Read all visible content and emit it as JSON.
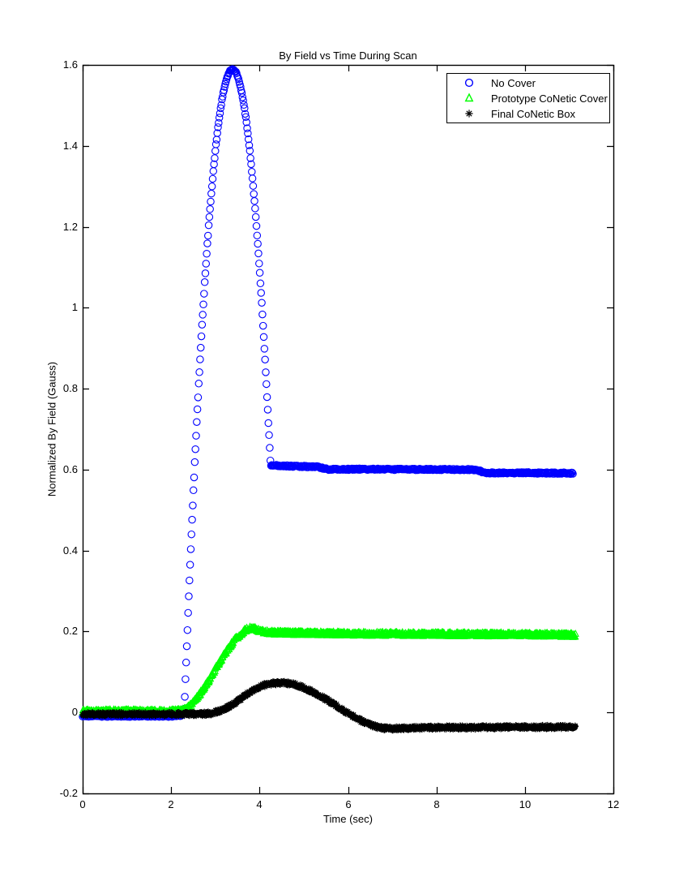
{
  "chart_data": {
    "type": "scatter",
    "title": "By Field vs Time During Scan",
    "xlabel": "Time (sec)",
    "ylabel": "Normalized By Field (Gauss)",
    "xlim": [
      0,
      12
    ],
    "ylim": [
      -0.2,
      1.6
    ],
    "grid": false,
    "legend_position": "upper-right",
    "background_color": "#FFFFFF",
    "axis_color": "#000000",
    "xtick_values": [
      0,
      2,
      4,
      6,
      8,
      10,
      12
    ],
    "xtick_labels": [
      "0",
      "2",
      "4",
      "6",
      "8",
      "10",
      "12"
    ],
    "ytick_values": [
      1.6,
      1.4,
      1.2,
      1,
      0.8,
      0.6,
      0.4,
      0.2,
      0,
      -0.2
    ],
    "ytick_labels": [
      "1.6",
      "1.4",
      "1.2",
      "1",
      "0.8",
      "0.6",
      "0.4",
      "0.2",
      "0",
      "-0.2"
    ],
    "series": [
      {
        "name": "No Cover",
        "marker": "circle",
        "color": "#0000FF",
        "sample_interval": 0.015,
        "jitter": 0.002,
        "points": [
          [
            0,
            -0.009
          ],
          [
            1.0,
            -0.009
          ],
          [
            2.0,
            -0.009
          ],
          [
            2.24,
            -0.007
          ],
          [
            2.3,
            0.01
          ],
          [
            2.35,
            0.151
          ],
          [
            2.4,
            0.286
          ],
          [
            2.45,
            0.415
          ],
          [
            2.5,
            0.536
          ],
          [
            2.55,
            0.652
          ],
          [
            2.6,
            0.76
          ],
          [
            2.65,
            0.862
          ],
          [
            2.7,
            0.957
          ],
          [
            2.75,
            1.045
          ],
          [
            2.8,
            1.127
          ],
          [
            2.85,
            1.202
          ],
          [
            2.9,
            1.271
          ],
          [
            2.95,
            1.332
          ],
          [
            3.0,
            1.388
          ],
          [
            3.05,
            1.436
          ],
          [
            3.1,
            1.478
          ],
          [
            3.15,
            1.513
          ],
          [
            3.2,
            1.542
          ],
          [
            3.25,
            1.564
          ],
          [
            3.3,
            1.579
          ],
          [
            3.35,
            1.588
          ],
          [
            3.39,
            1.59
          ],
          [
            3.45,
            1.585
          ],
          [
            3.5,
            1.574
          ],
          [
            3.55,
            1.556
          ],
          [
            3.6,
            1.531
          ],
          [
            3.65,
            1.5
          ],
          [
            3.7,
            1.462
          ],
          [
            3.75,
            1.418
          ],
          [
            3.8,
            1.366
          ],
          [
            3.85,
            1.309
          ],
          [
            3.9,
            1.244
          ],
          [
            3.95,
            1.173
          ],
          [
            4.0,
            1.095
          ],
          [
            4.05,
            1.011
          ],
          [
            4.1,
            0.92
          ],
          [
            4.15,
            0.822
          ],
          [
            4.2,
            0.717
          ],
          [
            4.25,
            0.611
          ],
          [
            4.6,
            0.609
          ],
          [
            5.3,
            0.607
          ],
          [
            5.55,
            0.601
          ],
          [
            6.5,
            0.601
          ],
          [
            8.9,
            0.6
          ],
          [
            9.1,
            0.592
          ],
          [
            10.0,
            0.592
          ],
          [
            11.1,
            0.591
          ]
        ]
      },
      {
        "name": "Prototype CoNetic Cover",
        "marker": "triangle",
        "color": "#00FF00",
        "sample_interval": 0.008,
        "jitter": 0.005,
        "points": [
          [
            0,
            0.002
          ],
          [
            1.0,
            0.002
          ],
          [
            2.0,
            0.002
          ],
          [
            2.25,
            0.003
          ],
          [
            2.35,
            0.008
          ],
          [
            2.45,
            0.018
          ],
          [
            2.55,
            0.03
          ],
          [
            2.65,
            0.045
          ],
          [
            2.75,
            0.06
          ],
          [
            2.85,
            0.078
          ],
          [
            2.95,
            0.097
          ],
          [
            3.05,
            0.115
          ],
          [
            3.15,
            0.133
          ],
          [
            3.25,
            0.15
          ],
          [
            3.35,
            0.166
          ],
          [
            3.45,
            0.18
          ],
          [
            3.55,
            0.191
          ],
          [
            3.65,
            0.2
          ],
          [
            3.75,
            0.206
          ],
          [
            3.85,
            0.207
          ],
          [
            3.95,
            0.204
          ],
          [
            4.05,
            0.2
          ],
          [
            4.2,
            0.197
          ],
          [
            4.5,
            0.196
          ],
          [
            5.0,
            0.195
          ],
          [
            6.0,
            0.194
          ],
          [
            7.0,
            0.193
          ],
          [
            8.0,
            0.193
          ],
          [
            9.0,
            0.192
          ],
          [
            10.0,
            0.192
          ],
          [
            11.15,
            0.19
          ]
        ]
      },
      {
        "name": "Final CoNetic Box",
        "marker": "asterisk",
        "color": "#000000",
        "sample_interval": 0.008,
        "jitter": 0.005,
        "points": [
          [
            0,
            -0.004
          ],
          [
            1.0,
            -0.004
          ],
          [
            2.0,
            -0.004
          ],
          [
            2.7,
            -0.004
          ],
          [
            2.9,
            -0.002
          ],
          [
            3.1,
            0.004
          ],
          [
            3.3,
            0.014
          ],
          [
            3.5,
            0.028
          ],
          [
            3.7,
            0.044
          ],
          [
            3.9,
            0.058
          ],
          [
            4.1,
            0.067
          ],
          [
            4.3,
            0.072
          ],
          [
            4.55,
            0.073
          ],
          [
            4.8,
            0.069
          ],
          [
            5.0,
            0.061
          ],
          [
            5.2,
            0.051
          ],
          [
            5.4,
            0.039
          ],
          [
            5.6,
            0.026
          ],
          [
            5.8,
            0.012
          ],
          [
            6.0,
            -0.002
          ],
          [
            6.2,
            -0.015
          ],
          [
            6.4,
            -0.026
          ],
          [
            6.6,
            -0.034
          ],
          [
            6.8,
            -0.039
          ],
          [
            7.0,
            -0.04
          ],
          [
            7.3,
            -0.039
          ],
          [
            7.6,
            -0.038
          ],
          [
            8.0,
            -0.037
          ],
          [
            9.0,
            -0.037
          ],
          [
            10.0,
            -0.036
          ],
          [
            11.15,
            -0.036
          ]
        ]
      }
    ]
  }
}
